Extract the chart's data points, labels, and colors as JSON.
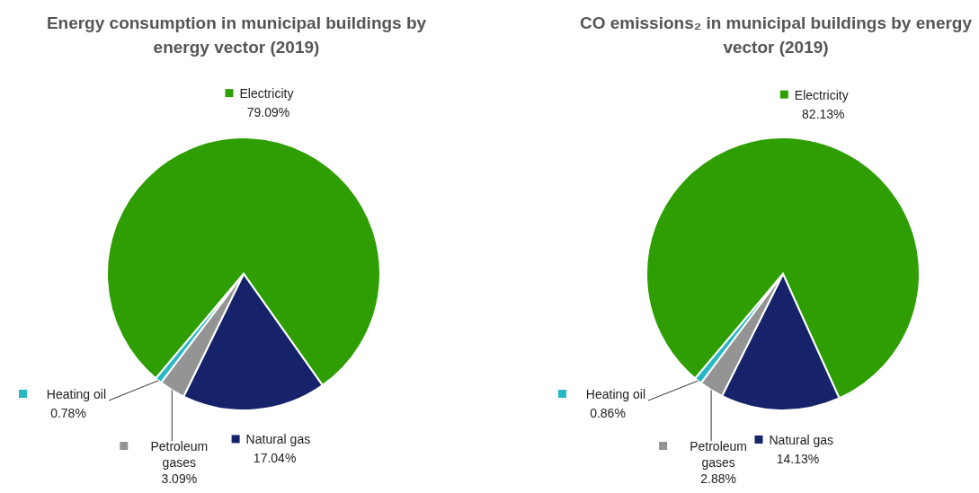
{
  "chart_data": [
    {
      "type": "pie",
      "title": "Energy consumption in municipal buildings by energy vector (2019)",
      "categories": [
        "Electricity",
        "Natural gas",
        "Petroleum gases",
        "Heating oil"
      ],
      "values": [
        79.09,
        17.04,
        3.09,
        0.78
      ],
      "value_labels": [
        "79.09%",
        "17.04%",
        "3.09%",
        "0.78%"
      ],
      "colors": [
        "#2e9e03",
        "#16236a",
        "#949494",
        "#28b7c4"
      ],
      "legend": true
    },
    {
      "type": "pie",
      "title": "CO emissions₂ in municipal buildings by energy vector (2019)",
      "categories": [
        "Electricity",
        "Natural gas",
        "Petroleum gases",
        "Heating oil"
      ],
      "values": [
        82.13,
        14.13,
        2.88,
        0.86
      ],
      "value_labels": [
        "82.13%",
        "14.13%",
        "2.88%",
        "0.86%"
      ],
      "colors": [
        "#2e9e03",
        "#16236a",
        "#949494",
        "#28b7c4"
      ],
      "legend": true
    }
  ]
}
